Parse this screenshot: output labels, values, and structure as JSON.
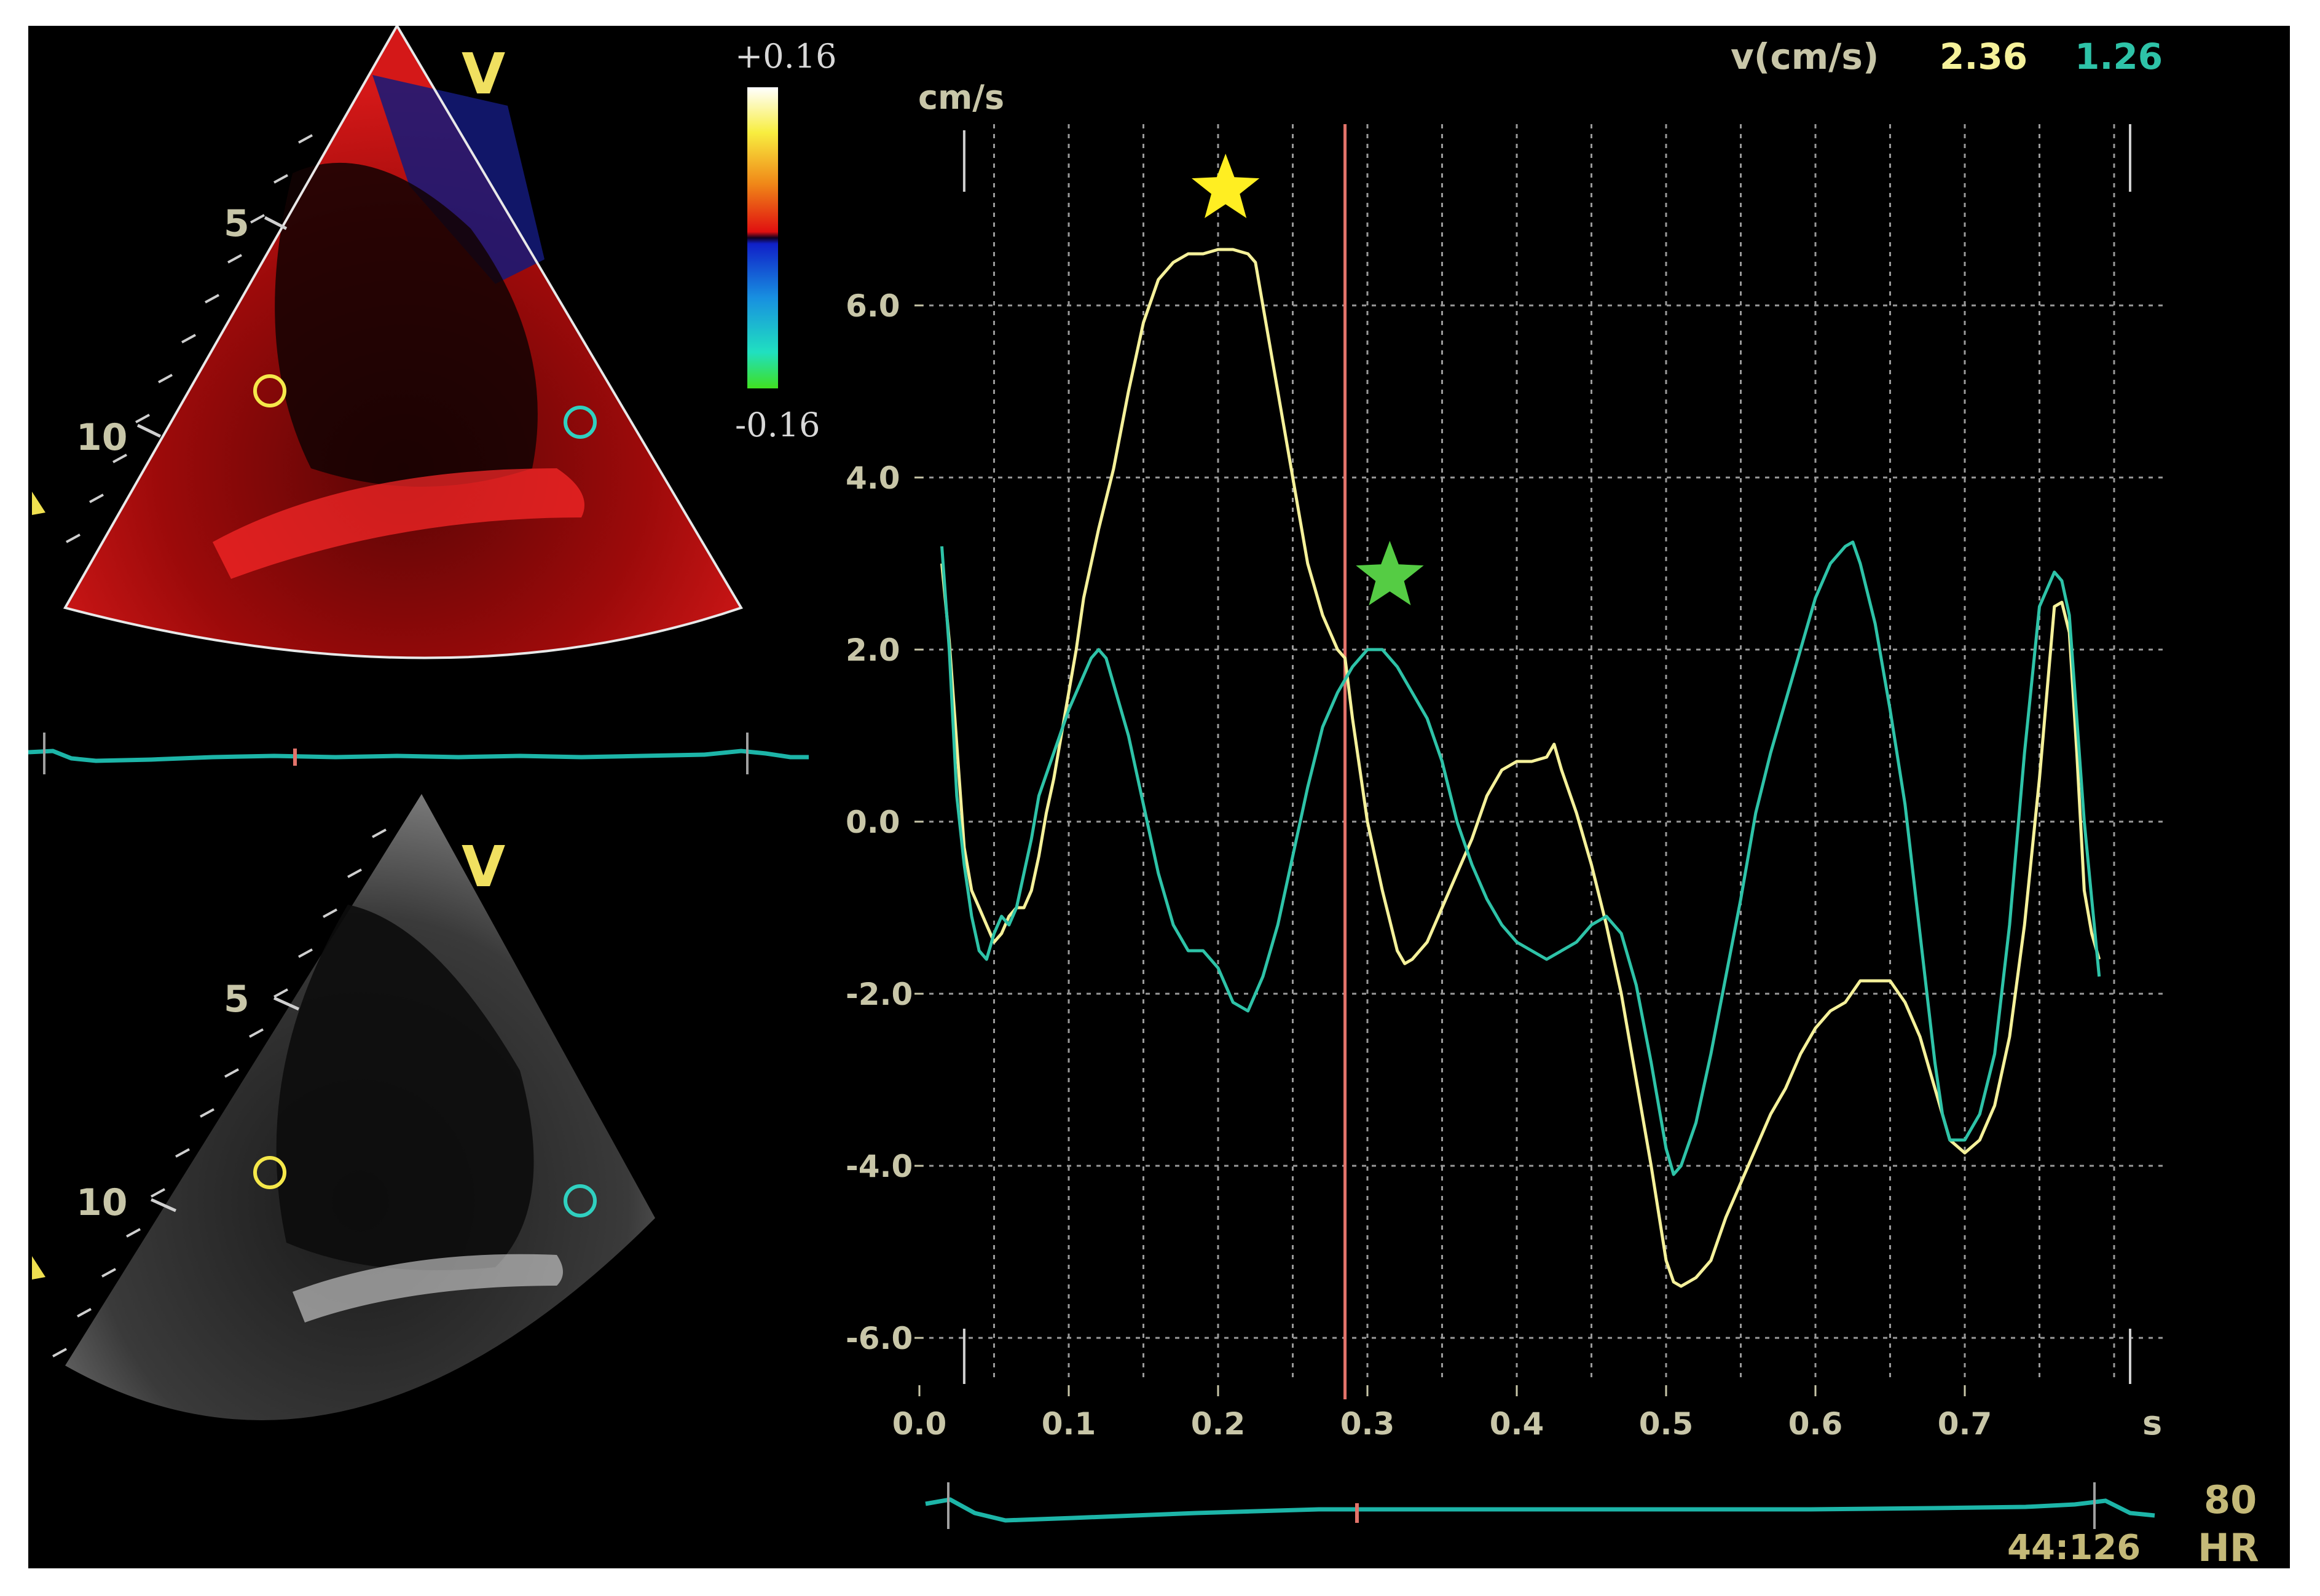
{
  "colors": {
    "yellow": "#f5f19a",
    "cyan": "#2ec3a8",
    "tick": "#c8c6a8",
    "marker_line": "#e2736a",
    "star_yellow": "#ffee22",
    "star_green": "#55cc44",
    "label_v": "#f0e060",
    "hr_text": "#c4b978"
  },
  "icons": {
    "left_markers": "triangle-marker-icon",
    "star_yellow": "star-icon",
    "star_green": "star-icon"
  },
  "echo_top": {
    "view_label": "V",
    "depth_labels": [
      "5",
      "10"
    ],
    "colorbar_max": "+0.16",
    "colorbar_min": "-0.16"
  },
  "echo_bottom": {
    "view_label": "V",
    "depth_labels": [
      "5",
      "10"
    ]
  },
  "readout": {
    "label": "v(cm/s)",
    "yellow_value": "2.36",
    "cyan_value": "1.26"
  },
  "footer": {
    "frame": "44:126",
    "hr_value": "80",
    "hr_label": "HR"
  },
  "chart_data": {
    "type": "line",
    "ylabel": "cm/s",
    "xlabel": "s",
    "xlim": [
      0.0,
      0.83
    ],
    "ylim": [
      -6.6,
      8.0
    ],
    "grid": true,
    "x_ticks": [
      "0.0",
      "0.1",
      "0.2",
      "0.3",
      "0.4",
      "0.5",
      "0.6",
      "0.7"
    ],
    "y_ticks": [
      "6.0",
      "4.0",
      "2.0",
      "0.0",
      "-2.0",
      "-4.0",
      "-6.0"
    ],
    "cursor_x": 0.285,
    "star_yellow": {
      "x": 0.205,
      "y": 7.35
    },
    "star_green": {
      "x": 0.315,
      "y": 2.85
    },
    "series": [
      {
        "color_key": "yellow",
        "x": [
          0.015,
          0.02,
          0.025,
          0.03,
          0.035,
          0.04,
          0.045,
          0.05,
          0.055,
          0.06,
          0.065,
          0.07,
          0.075,
          0.08,
          0.085,
          0.09,
          0.095,
          0.1,
          0.105,
          0.11,
          0.12,
          0.13,
          0.14,
          0.15,
          0.16,
          0.17,
          0.18,
          0.19,
          0.2,
          0.21,
          0.22,
          0.225,
          0.23,
          0.24,
          0.25,
          0.26,
          0.27,
          0.28,
          0.285,
          0.29,
          0.3,
          0.31,
          0.32,
          0.325,
          0.33,
          0.34,
          0.35,
          0.36,
          0.37,
          0.38,
          0.39,
          0.4,
          0.41,
          0.42,
          0.425,
          0.43,
          0.44,
          0.45,
          0.46,
          0.47,
          0.48,
          0.49,
          0.5,
          0.505,
          0.51,
          0.52,
          0.53,
          0.54,
          0.55,
          0.56,
          0.57,
          0.58,
          0.59,
          0.6,
          0.61,
          0.62,
          0.63,
          0.64,
          0.65,
          0.66,
          0.67,
          0.68,
          0.69,
          0.7,
          0.71,
          0.72,
          0.73,
          0.74,
          0.75,
          0.76,
          0.765,
          0.77,
          0.775,
          0.78,
          0.785,
          0.79
        ],
        "y": [
          3.0,
          2.1,
          0.9,
          -0.3,
          -0.8,
          -1.0,
          -1.2,
          -1.4,
          -1.3,
          -1.1,
          -1.0,
          -1.0,
          -0.8,
          -0.4,
          0.1,
          0.5,
          1.0,
          1.5,
          2.0,
          2.6,
          3.4,
          4.1,
          5.0,
          5.8,
          6.3,
          6.5,
          6.6,
          6.6,
          6.65,
          6.65,
          6.6,
          6.5,
          6.0,
          5.0,
          4.0,
          3.0,
          2.4,
          2.0,
          1.9,
          1.2,
          0.0,
          -0.8,
          -1.5,
          -1.65,
          -1.6,
          -1.4,
          -1.0,
          -0.6,
          -0.2,
          0.3,
          0.6,
          0.7,
          0.7,
          0.75,
          0.9,
          0.6,
          0.1,
          -0.5,
          -1.2,
          -2.0,
          -3.0,
          -4.0,
          -5.1,
          -5.35,
          -5.4,
          -5.3,
          -5.1,
          -4.6,
          -4.2,
          -3.8,
          -3.4,
          -3.1,
          -2.7,
          -2.4,
          -2.2,
          -2.1,
          -1.85,
          -1.85,
          -1.85,
          -2.1,
          -2.5,
          -3.1,
          -3.7,
          -3.85,
          -3.7,
          -3.3,
          -2.5,
          -1.2,
          0.5,
          2.5,
          2.55,
          2.2,
          0.8,
          -0.8,
          -1.3,
          -1.6
        ]
      },
      {
        "color_key": "cyan",
        "x": [
          0.015,
          0.02,
          0.025,
          0.03,
          0.035,
          0.04,
          0.045,
          0.05,
          0.055,
          0.06,
          0.065,
          0.07,
          0.075,
          0.08,
          0.09,
          0.1,
          0.11,
          0.115,
          0.12,
          0.125,
          0.13,
          0.14,
          0.15,
          0.16,
          0.17,
          0.18,
          0.19,
          0.2,
          0.21,
          0.22,
          0.23,
          0.24,
          0.25,
          0.26,
          0.27,
          0.28,
          0.29,
          0.3,
          0.31,
          0.32,
          0.33,
          0.34,
          0.35,
          0.36,
          0.37,
          0.38,
          0.39,
          0.4,
          0.41,
          0.42,
          0.43,
          0.44,
          0.45,
          0.46,
          0.47,
          0.48,
          0.49,
          0.5,
          0.505,
          0.51,
          0.52,
          0.53,
          0.54,
          0.55,
          0.56,
          0.57,
          0.58,
          0.59,
          0.6,
          0.61,
          0.62,
          0.625,
          0.63,
          0.64,
          0.65,
          0.66,
          0.67,
          0.68,
          0.685,
          0.69,
          0.7,
          0.71,
          0.72,
          0.73,
          0.74,
          0.75,
          0.76,
          0.765,
          0.77,
          0.78,
          0.79
        ],
        "y": [
          3.2,
          2.0,
          0.3,
          -0.5,
          -1.1,
          -1.5,
          -1.6,
          -1.3,
          -1.1,
          -1.2,
          -1.0,
          -0.6,
          -0.2,
          0.3,
          0.8,
          1.3,
          1.7,
          1.9,
          2.0,
          1.9,
          1.6,
          1.0,
          0.2,
          -0.6,
          -1.2,
          -1.5,
          -1.5,
          -1.7,
          -2.1,
          -2.2,
          -1.8,
          -1.2,
          -0.4,
          0.4,
          1.1,
          1.5,
          1.8,
          2.0,
          2.0,
          1.8,
          1.5,
          1.2,
          0.7,
          0.0,
          -0.5,
          -0.9,
          -1.2,
          -1.4,
          -1.5,
          -1.6,
          -1.5,
          -1.4,
          -1.2,
          -1.1,
          -1.3,
          -1.9,
          -2.8,
          -3.8,
          -4.1,
          -4.0,
          -3.5,
          -2.7,
          -1.8,
          -0.9,
          0.1,
          0.8,
          1.4,
          2.0,
          2.6,
          3.0,
          3.2,
          3.25,
          3.0,
          2.3,
          1.3,
          0.2,
          -1.3,
          -2.8,
          -3.4,
          -3.7,
          -3.7,
          -3.4,
          -2.7,
          -1.2,
          0.8,
          2.5,
          2.9,
          2.8,
          2.4,
          0.0,
          -1.8
        ]
      }
    ]
  }
}
